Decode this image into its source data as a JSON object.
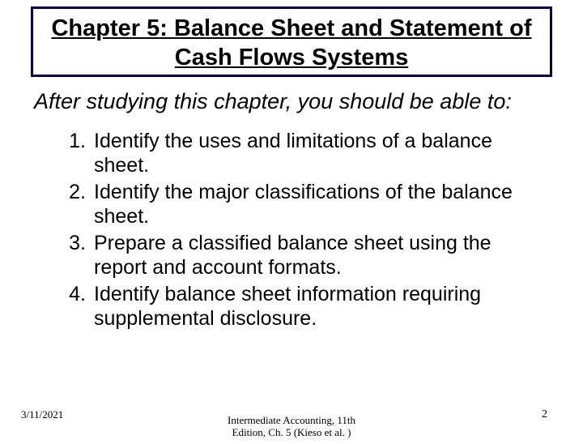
{
  "title": "Chapter 5: Balance Sheet and Statement of Cash Flows Systems",
  "intro": "After studying this chapter, you should be able to:",
  "objectives": [
    {
      "num": "1.",
      "text": "Identify the uses and limitations of a balance sheet."
    },
    {
      "num": "2.",
      "text": "Identify the major classifications of the balance sheet."
    },
    {
      "num": "3.",
      "text": "Prepare a classified balance sheet using the report and account formats."
    },
    {
      "num": "4.",
      "text": "Identify balance sheet information requiring supplemental disclosure."
    }
  ],
  "footer": {
    "date": "3/11/2021",
    "center_line1": "Intermediate Accounting, 11th",
    "center_line2": "Edition, Ch. 5 (Kieso et al. )",
    "page": "2"
  },
  "colors": {
    "title_border": "#000045",
    "text": "#000000",
    "background": "#ffffff"
  },
  "typography": {
    "title_fontsize": 29,
    "intro_fontsize": 27,
    "list_fontsize": 25,
    "footer_fontsize": 13
  }
}
